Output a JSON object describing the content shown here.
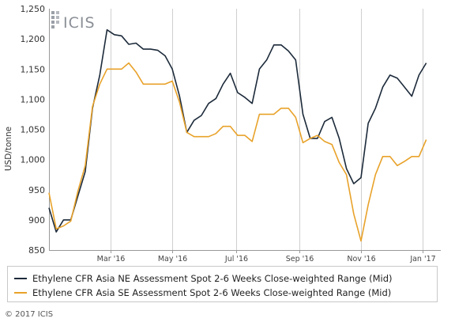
{
  "chart_data": {
    "type": "line",
    "ylabel": "USD/tonne",
    "ylim": [
      850,
      1250
    ],
    "yticks": [
      "1,250",
      "1,200",
      "1,150",
      "1,100",
      "1,050",
      "1,000",
      "950",
      "900",
      "850"
    ],
    "ytick_values": [
      1250,
      1200,
      1150,
      1100,
      1050,
      1000,
      950,
      900,
      850
    ],
    "xticks": [
      "Mar '16",
      "May '16",
      "Jul '16",
      "Sep '16",
      "Nov '16",
      "Jan '17"
    ],
    "xtick_weeks": [
      8.5,
      17,
      25.8,
      34.5,
      43,
      51.5
    ],
    "x_weeks_range": [
      0,
      54
    ],
    "grid": "vertical",
    "legend_position": "bottom",
    "series": [
      {
        "name": "Ethylene CFR Asia NE Assessment Spot 2-6 Weeks Close-weighted Range (Mid)",
        "color": "#1c2a3a",
        "values": [
          920,
          880,
          900,
          900,
          940,
          980,
          1085,
          1140,
          1215,
          1207,
          1205,
          1191,
          1193,
          1183,
          1183,
          1181,
          1172,
          1150,
          1105,
          1045,
          1065,
          1073,
          1093,
          1101,
          1125,
          1143,
          1111,
          1103,
          1093,
          1150,
          1165,
          1190,
          1190,
          1180,
          1165,
          1075,
          1035,
          1035,
          1063,
          1070,
          1035,
          985,
          960,
          970,
          1060,
          1085,
          1120,
          1140,
          1135,
          1120,
          1105,
          1140,
          1160
        ]
      },
      {
        "name": "Ethylene CFR Asia SE Assessment Spot 2-6 Weeks Close-weighted Range (Mid)",
        "color": "#e8a22a",
        "values": [
          945,
          885,
          890,
          898,
          948,
          990,
          1088,
          1125,
          1150,
          1150,
          1150,
          1160,
          1145,
          1125,
          1125,
          1125,
          1125,
          1130,
          1095,
          1045,
          1038,
          1038,
          1038,
          1043,
          1055,
          1055,
          1040,
          1040,
          1030,
          1075,
          1075,
          1075,
          1085,
          1085,
          1070,
          1028,
          1035,
          1040,
          1030,
          1025,
          995,
          975,
          910,
          865,
          925,
          975,
          1005,
          1005,
          990,
          997,
          1005,
          1005,
          1033
        ]
      }
    ]
  },
  "logo": {
    "text": "ICIS"
  },
  "copyright": "© 2017 ICIS"
}
